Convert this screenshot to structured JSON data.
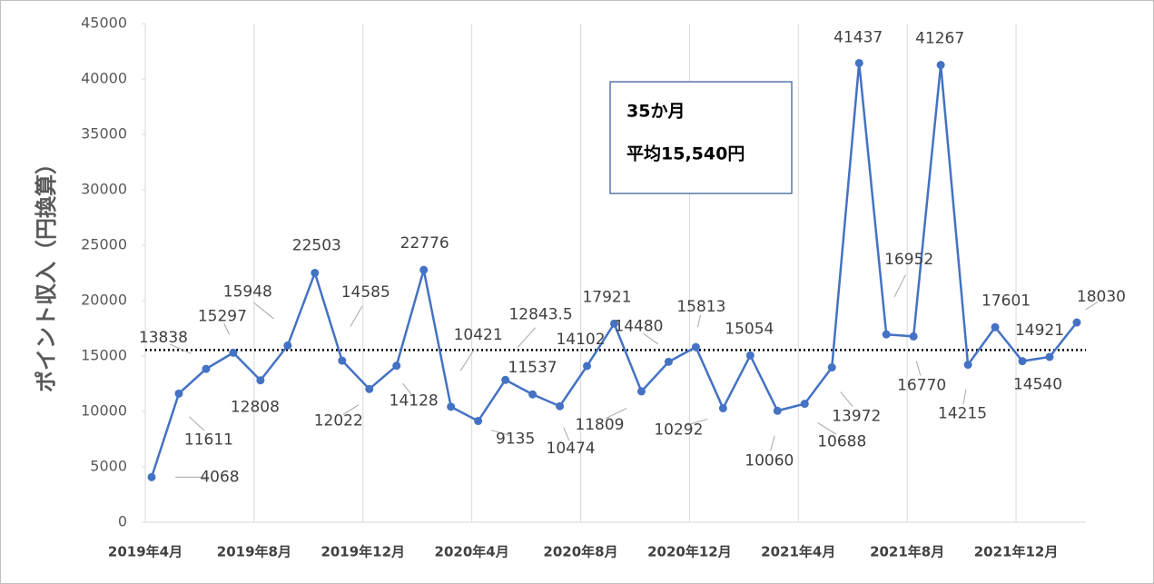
{
  "chart_data": {
    "type": "line",
    "y_label": "ポイント収入（円換算）",
    "categories": [
      "2019年4月",
      null,
      null,
      null,
      "2019年8月",
      null,
      null,
      null,
      "2019年12月",
      null,
      null,
      null,
      "2020年4月",
      null,
      null,
      null,
      "2020年8月",
      null,
      null,
      null,
      "2020年12月",
      null,
      null,
      null,
      "2021年4月",
      null,
      null,
      null,
      "2021年8月",
      null,
      null,
      null,
      "2021年12月",
      null,
      null
    ],
    "values": [
      4068,
      11611,
      13838,
      15297,
      12808,
      15948,
      22503,
      14585,
      12022,
      14128,
      22776,
      10421,
      9135,
      12843.5,
      11537,
      10474,
      14102,
      17921,
      11809,
      14480,
      15813,
      10292,
      15054,
      10060,
      10688,
      13972,
      41437,
      16952,
      16770,
      41267,
      14215,
      17601,
      14540,
      14921,
      18030
    ],
    "color": "#4472c4",
    "average": 15540,
    "annotations": [
      "35か月",
      "平均15,540円"
    ],
    "ylim": [
      0,
      45000
    ],
    "yticks": [
      0,
      5000,
      10000,
      15000,
      20000,
      25000,
      30000,
      35000,
      40000,
      45000
    ],
    "grid": "x"
  }
}
